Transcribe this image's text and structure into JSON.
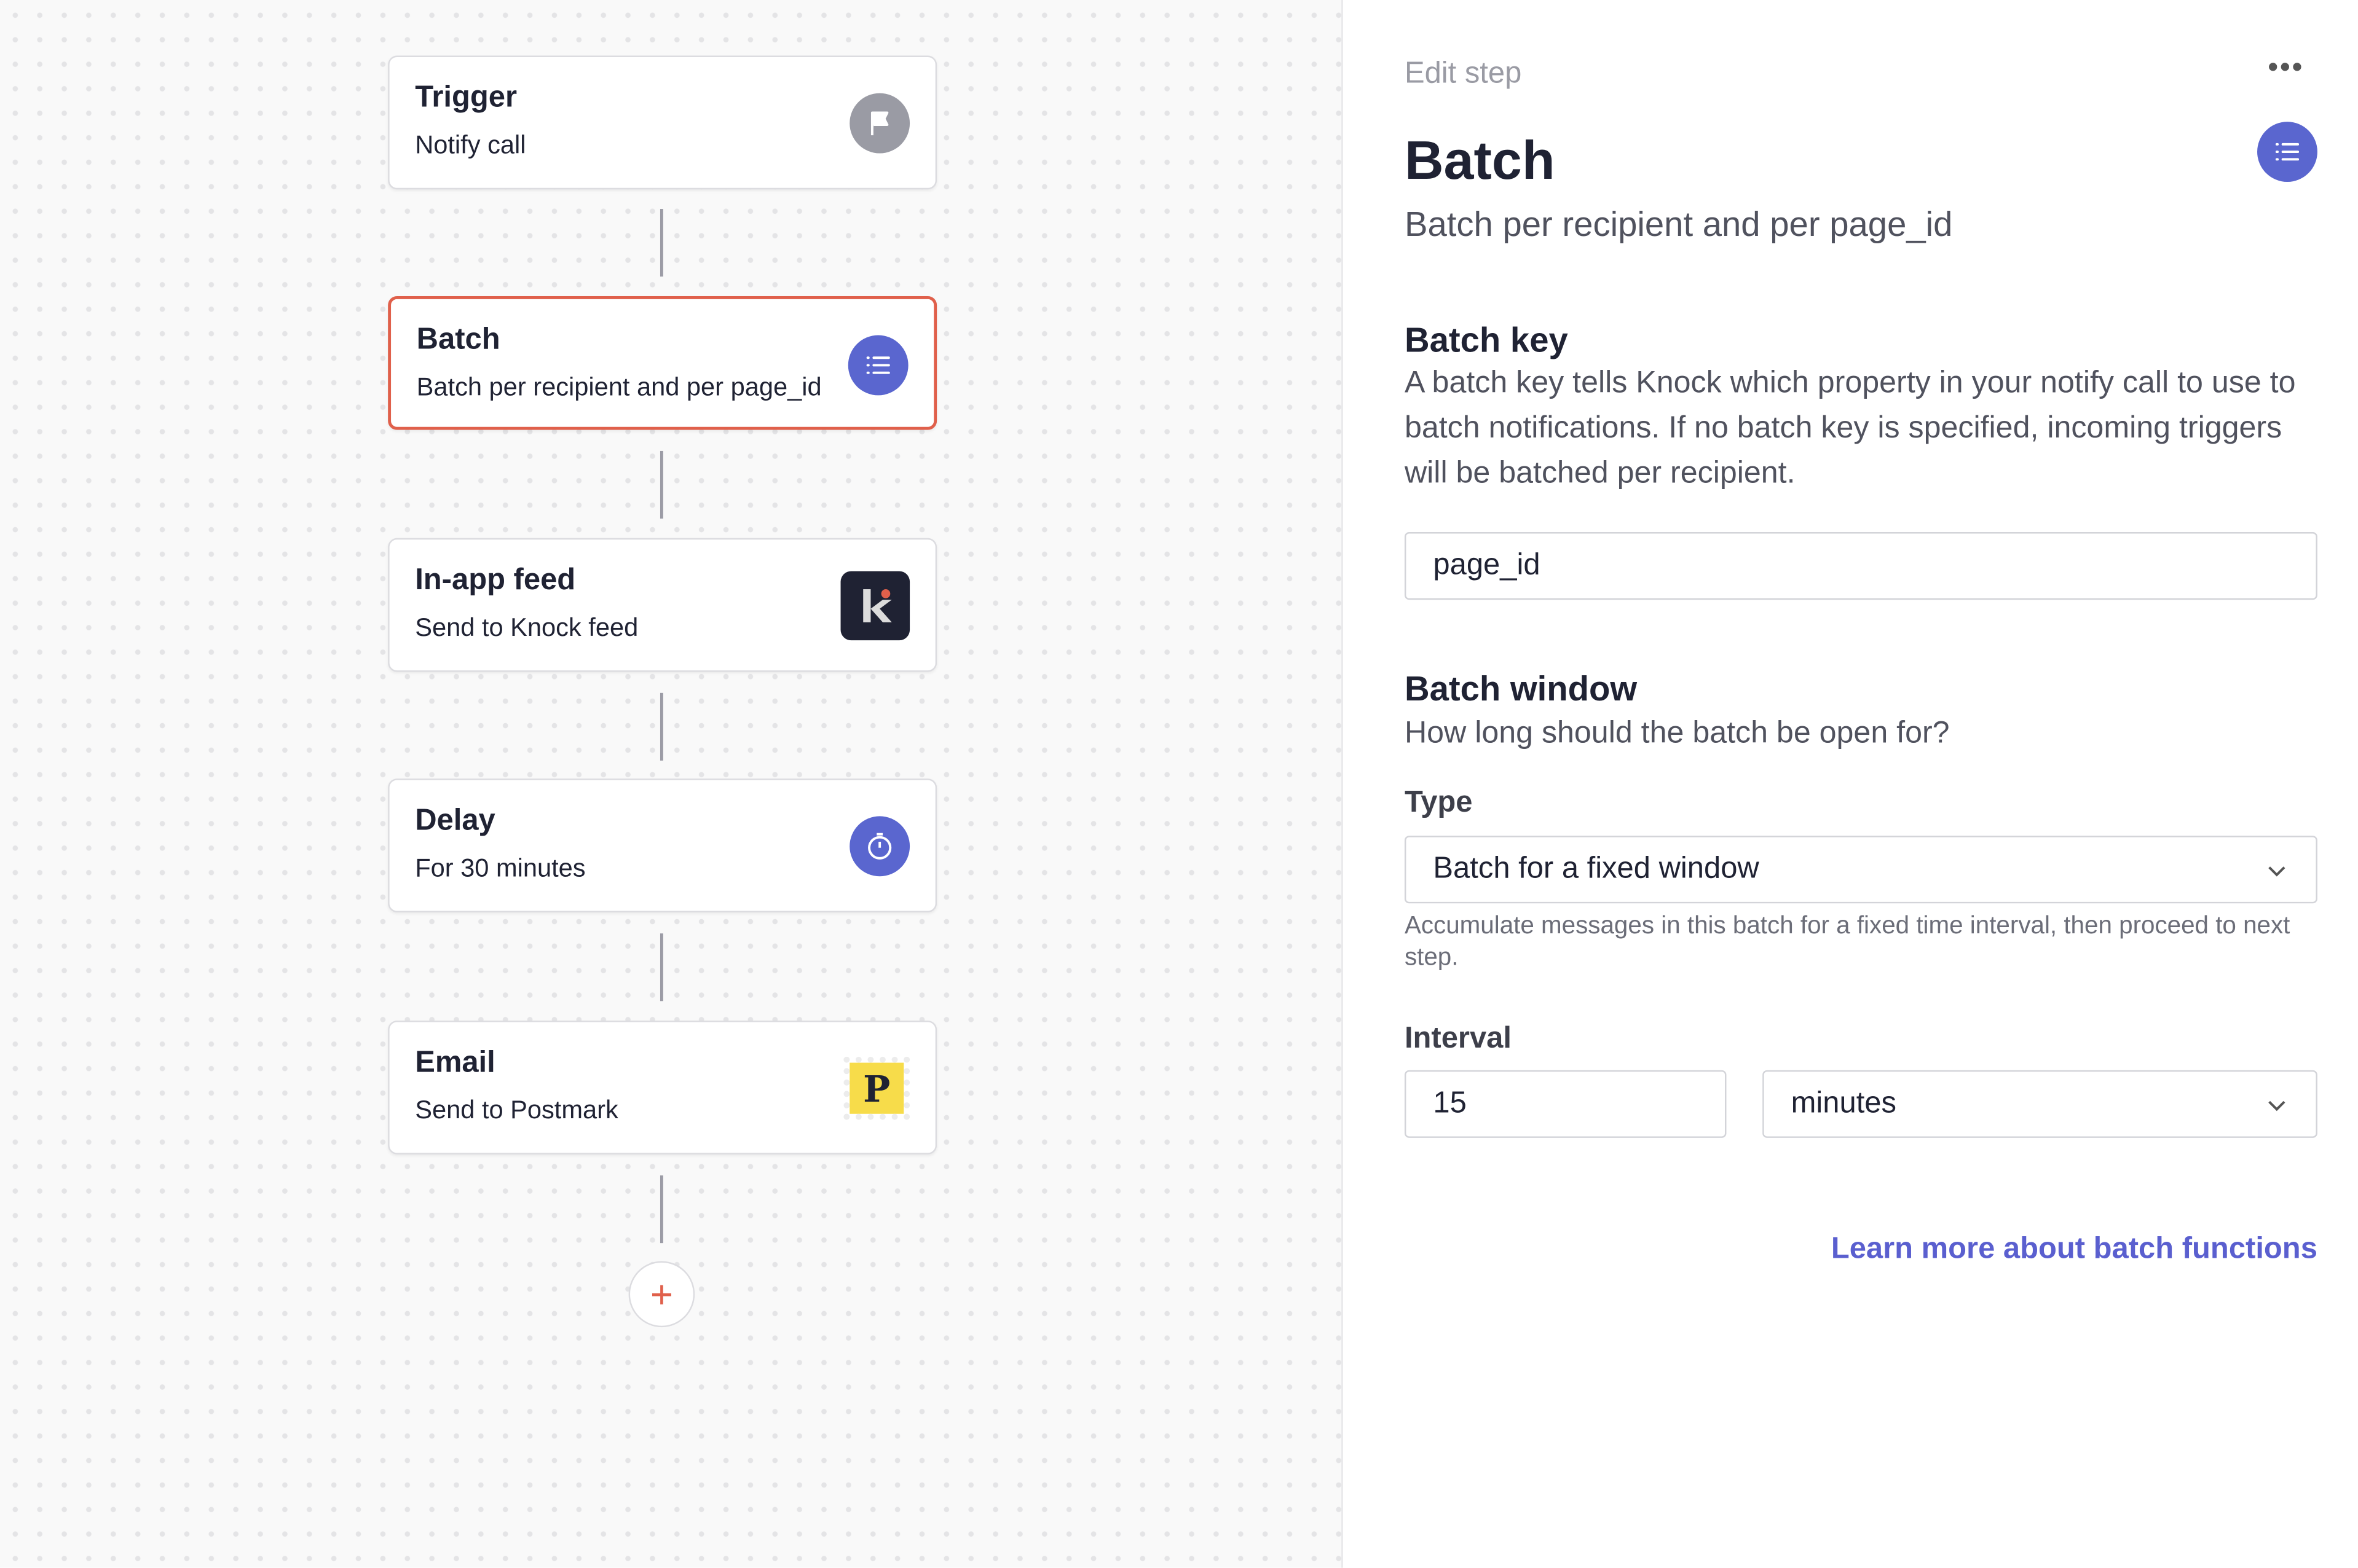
{
  "workflow": {
    "steps": [
      {
        "title": "Trigger",
        "subtitle": "Notify call",
        "icon": "flag-icon",
        "color": "#9a9ba4"
      },
      {
        "title": "Batch",
        "subtitle": "Batch per recipient and per page_id",
        "icon": "list-icon",
        "color": "#5a66cf",
        "selected": true
      },
      {
        "title": "In-app feed",
        "subtitle": "Send to Knock feed",
        "icon": "knock-logo-icon",
        "color": "#1f2233"
      },
      {
        "title": "Delay",
        "subtitle": "For 30 minutes",
        "icon": "stopwatch-icon",
        "color": "#5a66cf"
      },
      {
        "title": "Email",
        "subtitle": "Send to Postmark",
        "icon": "postmark-logo-icon",
        "color": "#f7dc4a"
      }
    ],
    "add_label": "+"
  },
  "panel": {
    "header": "Edit step",
    "more_label": "•••",
    "title": "Batch",
    "subtitle": "Batch per recipient and per page_id",
    "batch_key": {
      "heading": "Batch key",
      "description": "A batch key tells Knock which property in your notify call to use to batch notifications. If no batch key is specified, incoming triggers will be batched per recipient.",
      "value": "page_id"
    },
    "batch_window": {
      "heading": "Batch window",
      "description": "How long should the batch be open for?",
      "type_label": "Type",
      "type_value": "Batch for a fixed window",
      "type_help": "Accumulate messages in this batch for a fixed time interval, then proceed to next step.",
      "interval_label": "Interval",
      "interval_value": "15",
      "interval_unit": "minutes"
    },
    "learn_more": "Learn more about batch functions"
  }
}
